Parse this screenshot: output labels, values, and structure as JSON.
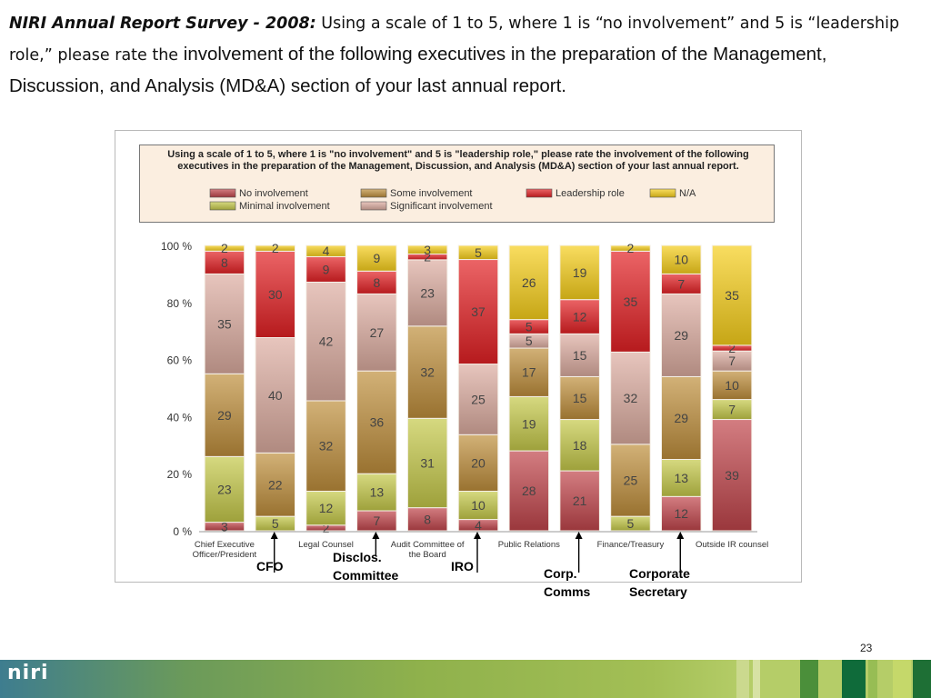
{
  "slide": {
    "title_lead": "NIRI Annual Report Survey - 2008:",
    "title_rest_a": " Using a scale of 1 to 5, where 1 is “no involvement” and 5 is “leadership role,” please rate the",
    "title_rest_b": " involvement of the following executives in the preparation of the Management, Discussion, and Analysis (MD&A) section of your last annual report.",
    "page_number": "23",
    "logo": "niri"
  },
  "callouts": [
    {
      "label": "CFO"
    },
    {
      "label": "Disclos.\nCommittee"
    },
    {
      "label": "IRO"
    },
    {
      "label": "Corp.\nComms"
    },
    {
      "label": "Corporate\nSecretary"
    }
  ],
  "chart_data": {
    "type": "bar",
    "stacked": true,
    "percent_stacked": true,
    "title": "Using a scale of 1 to 5, where 1 is \"no involvement\" and 5 is \"leadership role,\" please rate the involvement of the following executives in the preparation of the Management, Discussion, and Analysis (MD&A) section of your last annual report.",
    "xlabel": "",
    "ylabel": "",
    "ylim": [
      0,
      100
    ],
    "yticks": [
      "0 %",
      "20 %",
      "40 %",
      "60 %",
      "80 %",
      "100 %"
    ],
    "categories": [
      "Chief Executive Officer/President",
      "CFO",
      "Legal Counsel",
      "Disclosure Committee",
      "Audit Committee of the Board",
      "IRO",
      "Public Relations",
      "Corporate Communications",
      "Finance/Treasury",
      "Corporate Secretary",
      "Outside IR counsel"
    ],
    "category_tick_labels": [
      {
        "text": "Chief Executive",
        "text2": "Officer/President"
      },
      {
        "text": "",
        "text2": ""
      },
      {
        "text": "Legal Counsel",
        "text2": ""
      },
      {
        "text": "",
        "text2": ""
      },
      {
        "text": "Audit Committee of",
        "text2": "the Board"
      },
      {
        "text": "",
        "text2": ""
      },
      {
        "text": "Public Relations",
        "text2": ""
      },
      {
        "text": "",
        "text2": ""
      },
      {
        "text": "Finance/Treasury",
        "text2": ""
      },
      {
        "text": "",
        "text2": ""
      },
      {
        "text": "Outside IR counsel",
        "text2": ""
      }
    ],
    "legend": {
      "placement": "top"
    },
    "series": [
      {
        "name": "No involvement",
        "color": "#c0454b",
        "values": [
          3,
          0,
          2,
          7,
          8,
          4,
          28,
          21,
          0,
          12,
          39
        ]
      },
      {
        "name": "Minimal involvement",
        "color": "#c5c94a",
        "values": [
          23,
          5,
          12,
          13,
          31,
          10,
          19,
          18,
          5,
          13,
          7
        ]
      },
      {
        "name": "Some involvement",
        "color": "#bf8f3c",
        "values": [
          29,
          22,
          32,
          36,
          32,
          20,
          17,
          15,
          25,
          29,
          10
        ]
      },
      {
        "name": "Significant involvement",
        "color": "#dcaca0",
        "values": [
          35,
          40,
          42,
          27,
          23,
          25,
          5,
          15,
          32,
          29,
          7
        ]
      },
      {
        "name": "Leadership role",
        "color": "#e32124",
        "values": [
          8,
          30,
          9,
          8,
          2,
          37,
          5,
          12,
          35,
          7,
          2
        ]
      },
      {
        "name": "N/A",
        "color": "#f7cf1c",
        "values": [
          2,
          2,
          4,
          9,
          3,
          5,
          26,
          19,
          2,
          10,
          35
        ]
      }
    ]
  }
}
